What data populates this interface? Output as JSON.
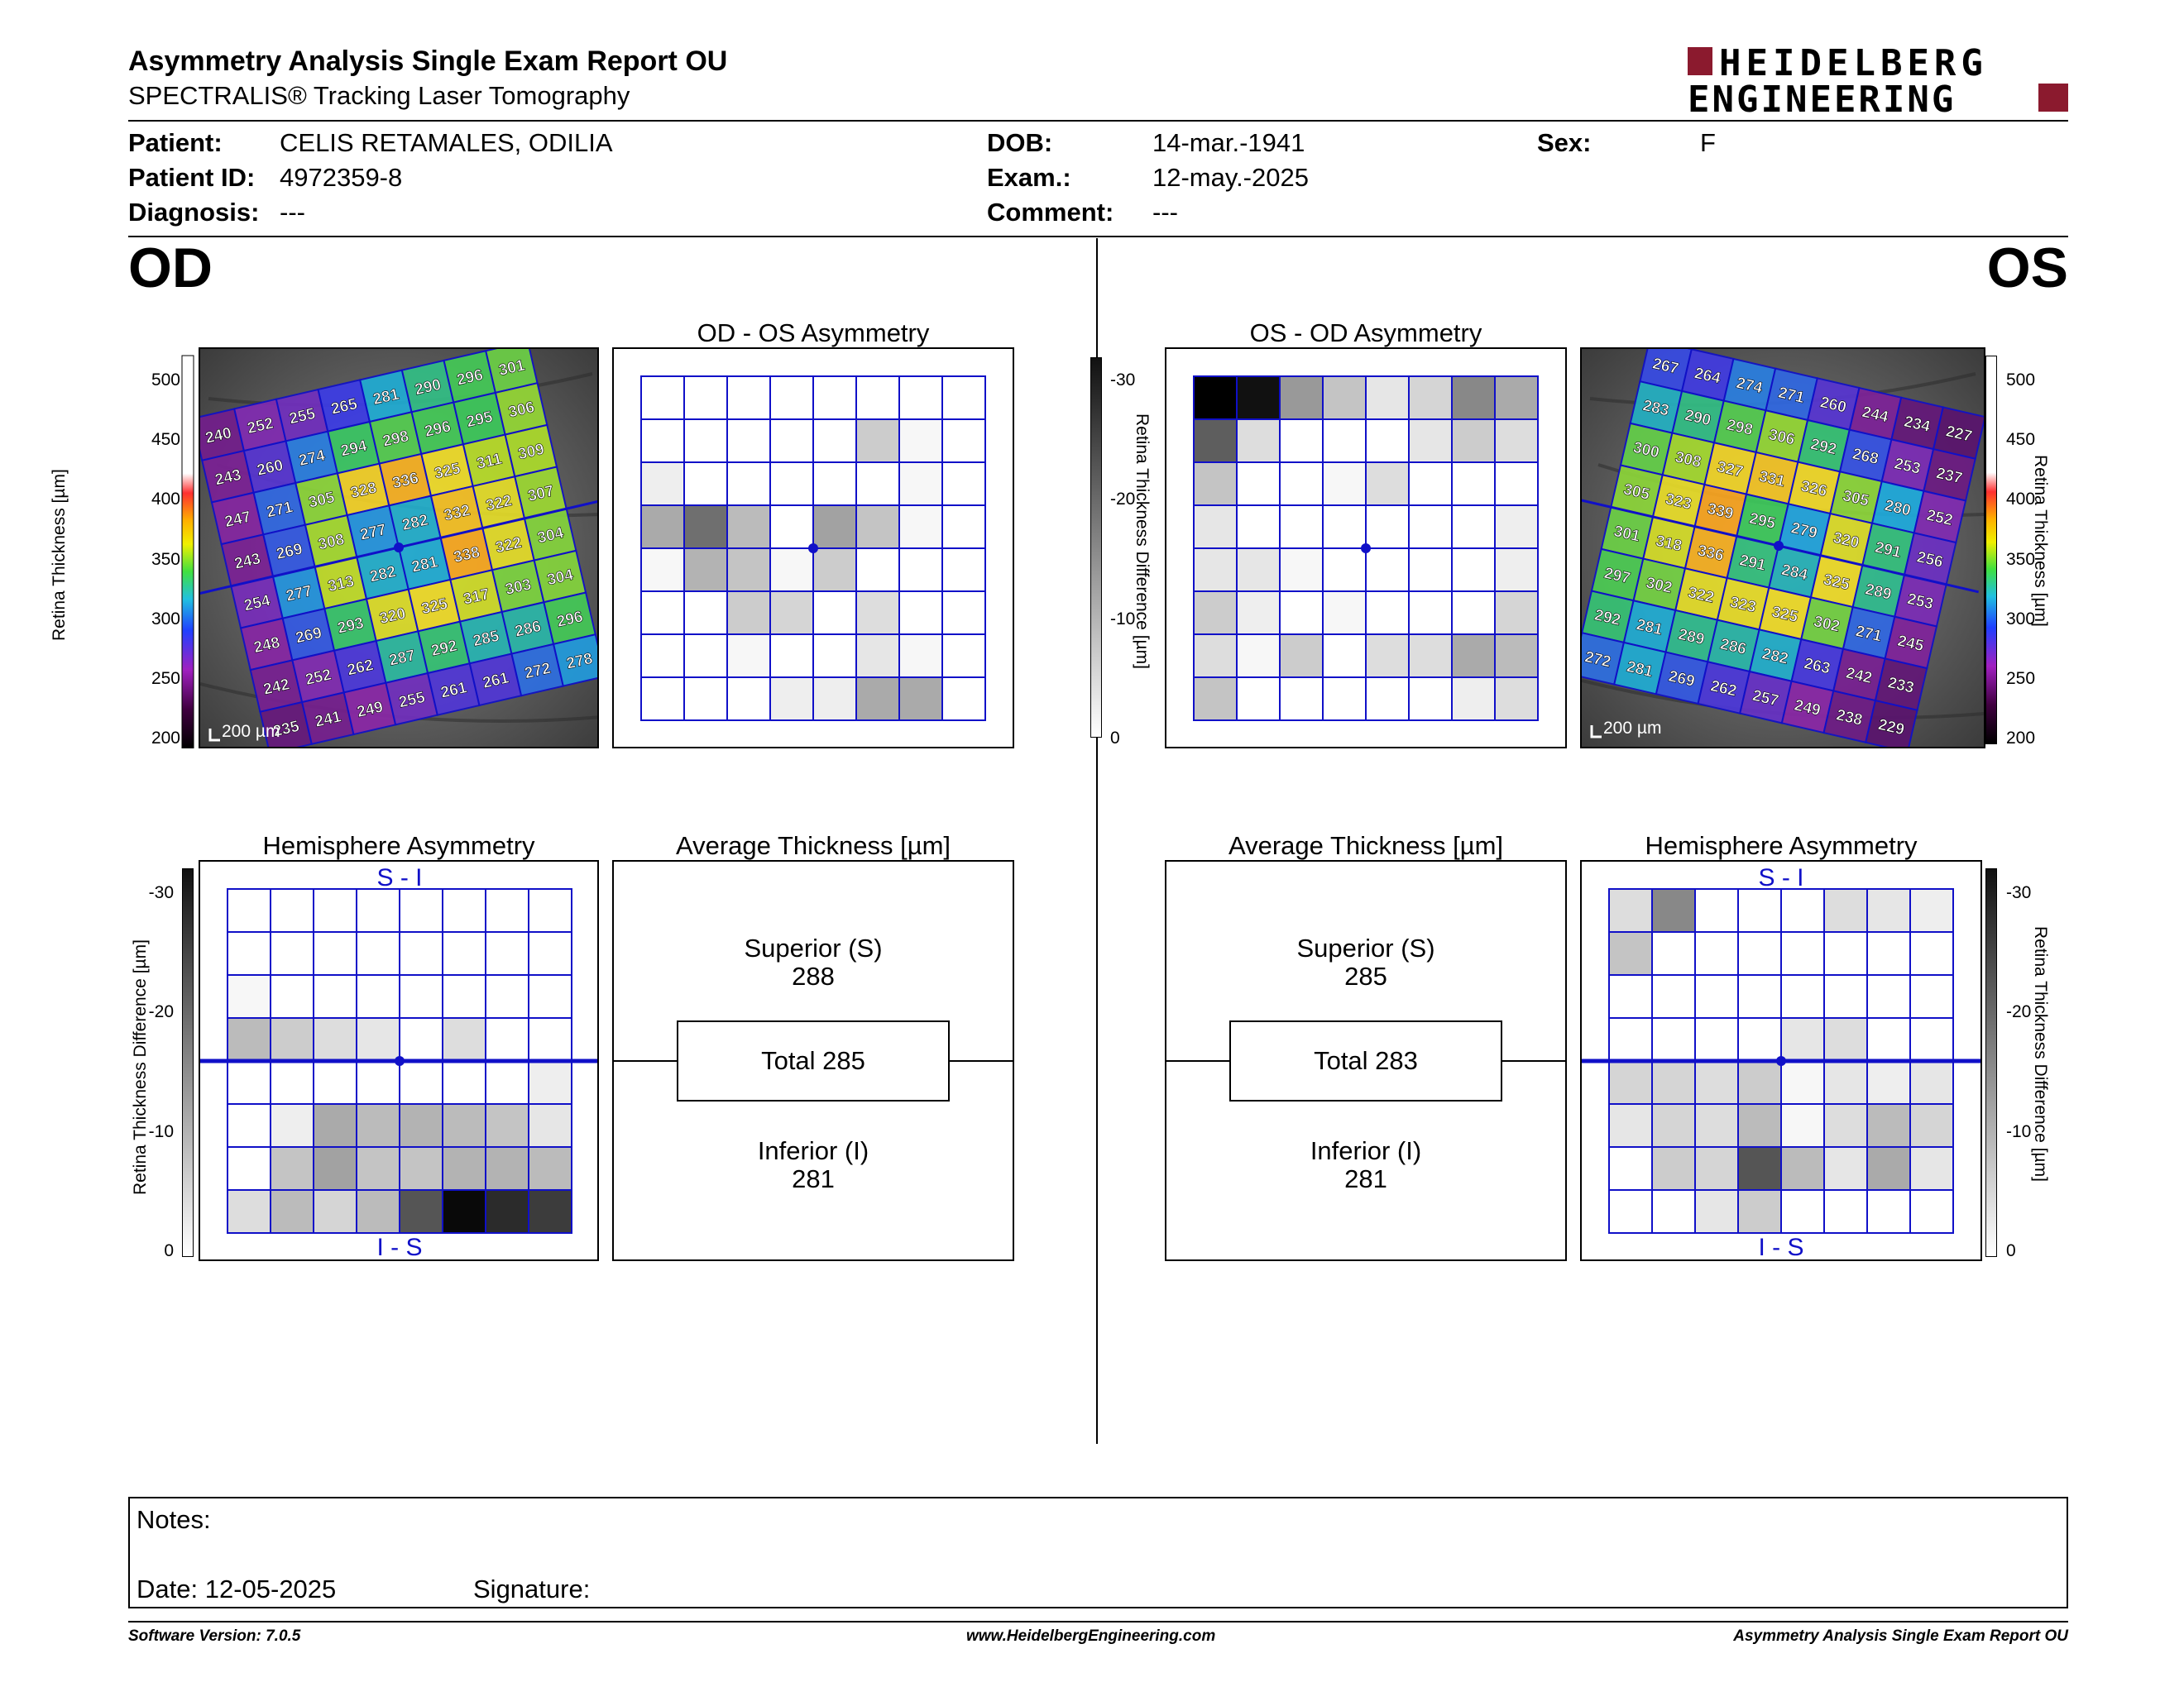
{
  "header": {
    "title": "Asymmetry Analysis Single Exam Report OU",
    "subtitle": "SPECTRALIS® Tracking Laser Tomography",
    "logo_line1": "HEIDELBERG",
    "logo_line2": "ENGINEERING",
    "logo_color": "#8b1a2e"
  },
  "patient": {
    "patient_label": "Patient:",
    "patient_value": "CELIS RETAMALES, ODILIA",
    "id_label": "Patient ID:",
    "id_value": "4972359-8",
    "diagnosis_label": "Diagnosis:",
    "diagnosis_value": "---",
    "dob_label": "DOB:",
    "dob_value": "14-mar.-1941",
    "exam_label": "Exam.:",
    "exam_value": "12-may.-2025",
    "comment_label": "Comment:",
    "comment_value": "---",
    "sex_label": "Sex:",
    "sex_value": "F"
  },
  "eyes": {
    "od": "OD",
    "os": "OS"
  },
  "titles": {
    "od_os_asym": "OD - OS Asymmetry",
    "os_od_asym": "OS - OD Asymmetry",
    "hemi_asym": "Hemisphere Asymmetry",
    "avg_thick": "Average Thickness [µm]",
    "s_i": "S - I",
    "i_s": "I - S"
  },
  "scales": {
    "thickness_label": "Retina Thickness [µm]",
    "thickness_ticks": [
      "500",
      "450",
      "400",
      "350",
      "300",
      "250",
      "200"
    ],
    "diff_label": "Retina Thickness Difference [µm]",
    "diff_ticks": [
      "-30",
      "-20",
      "-10",
      "0"
    ],
    "scalebar": "200 µm"
  },
  "od_thickness_grid": [
    [
      "240",
      "252",
      "255",
      "265",
      "281",
      "290",
      "296",
      "301"
    ],
    [
      "243",
      "260",
      "274",
      "294",
      "298",
      "296",
      "295",
      "306"
    ],
    [
      "247",
      "271",
      "305",
      "328",
      "336",
      "325",
      "311",
      "309"
    ],
    [
      "243",
      "269",
      "308",
      "277",
      "282",
      "332",
      "322",
      "307"
    ],
    [
      "254",
      "277",
      "313",
      "282",
      "281",
      "338",
      "322",
      "304"
    ],
    [
      "248",
      "269",
      "293",
      "320",
      "325",
      "317",
      "303",
      "304"
    ],
    [
      "242",
      "252",
      "262",
      "287",
      "292",
      "285",
      "286",
      "296"
    ],
    [
      "235",
      "241",
      "249",
      "255",
      "261",
      "261",
      "272",
      "278"
    ]
  ],
  "os_thickness_grid": [
    [
      "267",
      "264",
      "274",
      "271",
      "260",
      "244",
      "234",
      "227"
    ],
    [
      "283",
      "290",
      "298",
      "306",
      "292",
      "268",
      "253",
      "237"
    ],
    [
      "300",
      "308",
      "327",
      "331",
      "326",
      "305",
      "280",
      "252"
    ],
    [
      "305",
      "323",
      "339",
      "295",
      "279",
      "320",
      "291",
      "256"
    ],
    [
      "301",
      "318",
      "336",
      "291",
      "284",
      "325",
      "289",
      "253"
    ],
    [
      "297",
      "302",
      "322",
      "323",
      "325",
      "302",
      "271",
      "245"
    ],
    [
      "292",
      "281",
      "289",
      "286",
      "282",
      "263",
      "242",
      "233"
    ],
    [
      "272",
      "281",
      "269",
      "262",
      "257",
      "249",
      "238",
      "229"
    ]
  ],
  "od_os_asym_grid": [
    [
      0,
      0,
      0,
      0,
      0,
      0,
      0,
      0
    ],
    [
      0,
      0,
      0,
      0,
      0,
      6,
      1,
      0
    ],
    [
      2,
      0,
      0,
      0,
      0,
      0,
      1,
      0
    ],
    [
      10,
      17,
      8,
      0,
      11,
      7,
      1,
      0
    ],
    [
      1,
      9,
      7,
      1,
      6,
      0,
      0,
      0
    ],
    [
      0,
      0,
      6,
      5,
      0,
      4,
      0,
      0
    ],
    [
      0,
      0,
      1,
      0,
      0,
      3,
      1,
      0
    ],
    [
      0,
      0,
      0,
      2,
      2,
      10,
      10,
      0
    ]
  ],
  "os_od_asym_grid": [
    [
      30,
      28,
      12,
      7,
      3,
      5,
      14,
      10
    ],
    [
      19,
      4,
      0,
      0,
      0,
      3,
      6,
      4
    ],
    [
      7,
      0,
      0,
      1,
      4,
      0,
      0,
      0
    ],
    [
      3,
      0,
      0,
      0,
      0,
      0,
      0,
      2
    ],
    [
      3,
      3,
      1,
      0,
      0,
      0,
      0,
      2
    ],
    [
      6,
      2,
      0,
      1,
      0,
      0,
      0,
      5
    ],
    [
      4,
      1,
      6,
      0,
      4,
      4,
      10,
      8
    ],
    [
      7,
      0,
      0,
      0,
      0,
      0,
      2,
      4
    ]
  ],
  "od_hemi_grid": [
    [
      0,
      0,
      0,
      0,
      0,
      0,
      0,
      0
    ],
    [
      0,
      0,
      0,
      0,
      0,
      0,
      0,
      0
    ],
    [
      1,
      0,
      0,
      0,
      0,
      0,
      0,
      0
    ],
    [
      8,
      6,
      4,
      3,
      0,
      4,
      0,
      0
    ],
    [
      0,
      0,
      0,
      0,
      0,
      0,
      0,
      2
    ],
    [
      0,
      2,
      10,
      8,
      9,
      8,
      7,
      3
    ],
    [
      0,
      7,
      11,
      7,
      7,
      9,
      9,
      8
    ],
    [
      4,
      8,
      5,
      8,
      20,
      29,
      25,
      23
    ]
  ],
  "os_hemi_grid": [
    [
      4,
      14,
      0,
      0,
      0,
      4,
      3,
      2
    ],
    [
      7,
      0,
      0,
      0,
      0,
      0,
      0,
      0
    ],
    [
      0,
      0,
      0,
      0,
      0,
      0,
      0,
      0
    ],
    [
      0,
      0,
      0,
      0,
      3,
      4,
      0,
      0
    ],
    [
      5,
      5,
      4,
      6,
      1,
      3,
      2,
      3
    ],
    [
      3,
      5,
      4,
      8,
      1,
      4,
      8,
      5
    ],
    [
      0,
      6,
      5,
      20,
      8,
      3,
      10,
      3
    ],
    [
      0,
      0,
      3,
      6,
      0,
      0,
      0,
      0
    ]
  ],
  "od_avg": {
    "superior_label": "Superior (S)",
    "superior_value": "288",
    "total": "Total 285",
    "inferior_label": "Inferior (I)",
    "inferior_value": "281"
  },
  "os_avg": {
    "superior_label": "Superior (S)",
    "superior_value": "285",
    "total": "Total 283",
    "inferior_label": "Inferior (I)",
    "inferior_value": "281"
  },
  "notes": {
    "notes_label": "Notes:",
    "date_label": "Date: 12-05-2025",
    "signature_label": "Signature:"
  },
  "footer": {
    "left": "Software Version: 7.0.5",
    "center": "www.HeidelbergEngineering.com",
    "right": "Asymmetry Analysis Single Exam Report OU"
  },
  "colors": {
    "grid_blue": "#1010c8",
    "brand_red": "#8b1a2e"
  }
}
